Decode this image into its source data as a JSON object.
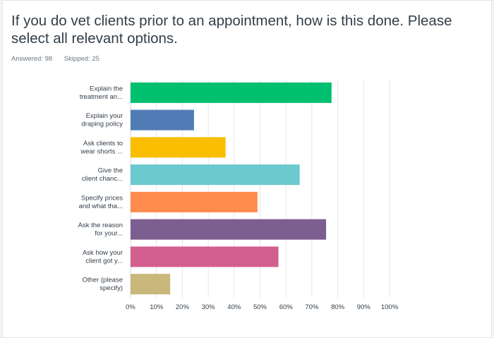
{
  "question": {
    "title": "If you do vet clients prior to an appointment, how is this done. Please select all relevant options."
  },
  "stats": {
    "answered": "Answered: 98",
    "skipped": "Skipped: 25"
  },
  "chart_data": {
    "type": "bar",
    "orientation": "horizontal",
    "title": "",
    "xlabel": "",
    "ylabel": "",
    "xlim": [
      0,
      100
    ],
    "ticks": [
      "0%",
      "10%",
      "20%",
      "30%",
      "40%",
      "50%",
      "60%",
      "70%",
      "80%",
      "90%",
      "100%"
    ],
    "grid": true,
    "categories": [
      [
        "Explain the",
        "treatment an..."
      ],
      [
        "Explain your",
        "draping policy"
      ],
      [
        "Ask clients to",
        "wear shorts ..."
      ],
      [
        "Give the",
        "client chanc..."
      ],
      [
        "Specify prices",
        "and what tha..."
      ],
      [
        "Ask the reason",
        "for your..."
      ],
      [
        "Ask how your",
        "client got y..."
      ],
      [
        "Other (please",
        "specify)"
      ]
    ],
    "values": [
      77.6,
      24.5,
      36.7,
      65.3,
      49.0,
      75.5,
      57.1,
      15.3
    ],
    "colors": [
      "#00bf6f",
      "#507cb6",
      "#f9be00",
      "#6bc8cd",
      "#ff8b4f",
      "#7d5e90",
      "#d25f90",
      "#c9b77c"
    ]
  }
}
